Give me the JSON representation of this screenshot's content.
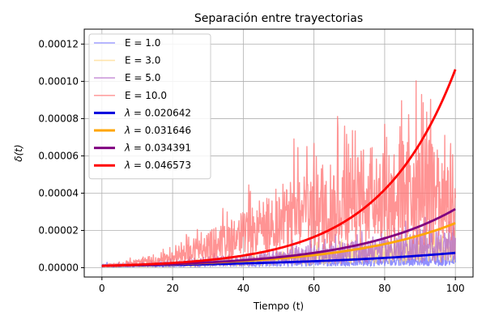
{
  "chart_data": {
    "type": "line",
    "title": "Separación entre trayectorias",
    "xlabel": "Tiempo (t)",
    "ylabel": "δ(t)",
    "xlim": [
      -5,
      105
    ],
    "ylim": [
      -5e-06,
      0.000128
    ],
    "x_ticks": [
      0,
      20,
      40,
      60,
      80,
      100
    ],
    "x_tick_labels": [
      "0",
      "20",
      "40",
      "60",
      "80",
      "100"
    ],
    "y_ticks": [
      0,
      2e-05,
      4e-05,
      6e-05,
      8e-05,
      0.0001,
      0.00012
    ],
    "y_tick_labels": [
      "0.00000",
      "0.00002",
      "0.00004",
      "0.00006",
      "0.00008",
      "0.00010",
      "0.00012"
    ],
    "grid": true,
    "legend_position": "upper-left",
    "raw_series": [
      {
        "name": "E = 1.0",
        "color": "#6b6bff",
        "peak_envelope": [
          [
            0,
            3e-06
          ],
          [
            20,
            3.5e-06
          ],
          [
            40,
            5e-06
          ],
          [
            60,
            7e-06
          ],
          [
            80,
            9e-06
          ],
          [
            100,
            1e-05
          ]
        ]
      },
      {
        "name": "E = 3.0",
        "color": "#ffd580",
        "peak_envelope": [
          [
            0,
            2e-06
          ],
          [
            20,
            4e-06
          ],
          [
            40,
            8e-06
          ],
          [
            60,
            1.4e-05
          ],
          [
            80,
            2e-05
          ],
          [
            100,
            2.6e-05
          ]
        ]
      },
      {
        "name": "E = 5.0",
        "color": "#b266c8",
        "peak_envelope": [
          [
            0,
            2e-06
          ],
          [
            20,
            5e-06
          ],
          [
            40,
            1e-05
          ],
          [
            60,
            1.7e-05
          ],
          [
            80,
            2.5e-05
          ],
          [
            100,
            3e-05
          ]
        ]
      },
      {
        "name": "E = 10.0",
        "color": "#ff7070",
        "peak_envelope": [
          [
            0,
            2e-06
          ],
          [
            20,
            1.2e-05
          ],
          [
            40,
            4.5e-05
          ],
          [
            60,
            8e-05
          ],
          [
            80,
            0.000105
          ],
          [
            100,
            0.0001
          ]
        ]
      }
    ],
    "fit_series": [
      {
        "name": "λ = 0.020642",
        "label_prefix": "λ",
        "label_value": "= 0.020642",
        "lambda": 0.020642,
        "amplitude": 1.01e-06,
        "color": "#0000dd"
      },
      {
        "name": "λ = 0.031646",
        "label_prefix": "λ",
        "label_value": "= 0.031646",
        "lambda": 0.031646,
        "amplitude": 1.01e-06,
        "color": "#ffa500"
      },
      {
        "name": "λ = 0.034391",
        "label_prefix": "λ",
        "label_value": "= 0.034391",
        "lambda": 0.034391,
        "amplitude": 1.01e-06,
        "color": "#800080"
      },
      {
        "name": "λ = 0.046573",
        "label_prefix": "λ",
        "label_value": "= 0.046573",
        "lambda": 0.046573,
        "amplitude": 1.01e-06,
        "color": "#ff0000"
      }
    ]
  }
}
